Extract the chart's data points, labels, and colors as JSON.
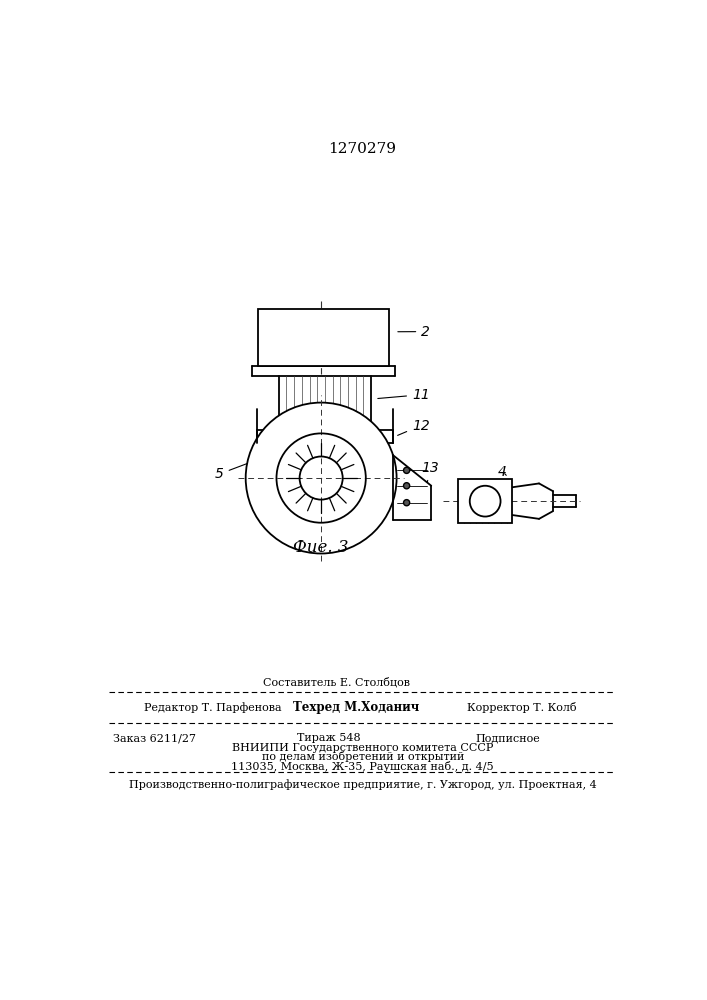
{
  "patent_number": "1270279",
  "fig_label": "Фие. 3",
  "bg_color": "#ffffff",
  "line_color": "#000000",
  "footer": {
    "line1_left": "Редактор Т. Парфенова",
    "line1_center": "Составитель Е. Столбцов",
    "line1_center2": "Техред М.Ходанич",
    "line1_right": "Корректор Т. Колб",
    "line2_left": "Заказ 6211/27",
    "line2_center": "Тираж 548",
    "line2_right": "Подписное",
    "line3": "ВНИИПИ Государственного комитета СССР",
    "line4": "по делам изобретений и открытий",
    "line5": "113035, Москва, Ж-35, Раушская наб., д. 4/5",
    "line6": "Производственно-полиграфическое предприятие, г. Ужгород, ул. Проектная, 4"
  }
}
